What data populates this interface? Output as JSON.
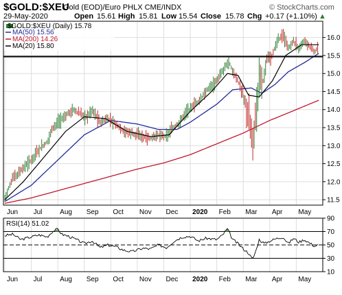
{
  "header": {
    "symbol": "$GOLD:$XEU",
    "description": "Gold (EOD)/Euro PHLX  CME/INDX",
    "watermark": "© StockCharts.com",
    "date": "29-May-2020",
    "open_label": "Open",
    "open": "15.61",
    "high_label": "High",
    "high": "15.81",
    "low_label": "Low",
    "low": "15.54",
    "close_label": "Close",
    "close": "15.78",
    "chg_label": "Chg",
    "chg": "+0.17 (+1.10%)",
    "chg_arrow": "▲"
  },
  "legend": {
    "price": "$GOLD:$XEU (Daily) 15.78",
    "ma50": "MA(50) 15.56",
    "ma200": "MA(200) 14.26",
    "ma20": "MA(20) 15.80"
  },
  "colors": {
    "up": "#2e7d32",
    "down": "#c62828",
    "ma50": "#1f2a9b",
    "ma200": "#c0162e",
    "ma20": "#000000",
    "rsi_fill": "#6aa96a",
    "grid": "#dddddd"
  },
  "chart_data": [
    {
      "type": "candlestick",
      "title": "$GOLD:$XEU (Daily)",
      "ylim": [
        11.35,
        16.45
      ],
      "yticks": [
        "11.5",
        "12.0",
        "12.5",
        "13.0",
        "13.5",
        "14.0",
        "14.5",
        "15.0",
        "15.5",
        "16.0"
      ],
      "xticks": [
        "Jun",
        "Jul",
        "Aug",
        "Sep",
        "Oct",
        "Nov",
        "Dec",
        "2020",
        "Feb",
        "Mar",
        "Apr",
        "May"
      ],
      "xtick_months": [
        0,
        1,
        2,
        3,
        4,
        5,
        6,
        7,
        8,
        9,
        10,
        11
      ],
      "horizontal_line": 15.47,
      "price_anchors": [
        [
          0,
          11.55
        ],
        [
          0.3,
          12.1
        ],
        [
          0.6,
          12.3
        ],
        [
          1.0,
          12.6
        ],
        [
          1.3,
          12.9
        ],
        [
          1.6,
          13.1
        ],
        [
          1.8,
          13.5
        ],
        [
          2.1,
          13.7
        ],
        [
          2.4,
          13.9
        ],
        [
          2.6,
          14.0
        ],
        [
          2.9,
          13.85
        ],
        [
          3.1,
          13.8
        ],
        [
          3.3,
          14.0
        ],
        [
          3.6,
          13.65
        ],
        [
          3.9,
          13.75
        ],
        [
          4.2,
          13.6
        ],
        [
          4.5,
          13.4
        ],
        [
          4.8,
          13.35
        ],
        [
          5.2,
          13.25
        ],
        [
          5.5,
          13.2
        ],
        [
          5.8,
          13.3
        ],
        [
          6.1,
          13.25
        ],
        [
          6.3,
          13.45
        ],
        [
          6.6,
          13.65
        ],
        [
          6.8,
          13.9
        ],
        [
          7.1,
          14.1
        ],
        [
          7.4,
          14.3
        ],
        [
          7.7,
          14.6
        ],
        [
          8.0,
          14.8
        ],
        [
          8.25,
          15.1
        ],
        [
          8.45,
          15.35
        ],
        [
          8.6,
          15.05
        ],
        [
          8.8,
          14.8
        ],
        [
          9.0,
          14.4
        ],
        [
          9.2,
          13.8
        ],
        [
          9.35,
          13.1
        ],
        [
          9.5,
          13.95
        ],
        [
          9.6,
          15.0
        ],
        [
          9.75,
          14.8
        ],
        [
          9.9,
          15.4
        ],
        [
          10.1,
          15.5
        ],
        [
          10.3,
          15.95
        ],
        [
          10.5,
          16.05
        ],
        [
          10.7,
          15.7
        ],
        [
          10.9,
          15.9
        ],
        [
          11.1,
          15.7
        ],
        [
          11.3,
          15.9
        ],
        [
          11.5,
          15.75
        ],
        [
          11.7,
          15.6
        ],
        [
          11.85,
          15.75
        ]
      ],
      "ma50_anchors": [
        [
          0,
          11.45
        ],
        [
          1.0,
          11.9
        ],
        [
          2.0,
          12.6
        ],
        [
          3.0,
          13.3
        ],
        [
          4.0,
          13.7
        ],
        [
          5.0,
          13.6
        ],
        [
          5.8,
          13.45
        ],
        [
          6.5,
          13.45
        ],
        [
          7.0,
          13.65
        ],
        [
          8.0,
          14.15
        ],
        [
          8.6,
          14.55
        ],
        [
          9.3,
          14.6
        ],
        [
          9.7,
          14.45
        ],
        [
          10.2,
          14.7
        ],
        [
          10.7,
          15.05
        ],
        [
          11.3,
          15.3
        ],
        [
          11.85,
          15.56
        ]
      ],
      "ma200_anchors": [
        [
          0,
          11.4
        ],
        [
          1.0,
          11.55
        ],
        [
          2.0,
          11.75
        ],
        [
          3.0,
          11.95
        ],
        [
          4.0,
          12.15
        ],
        [
          5.0,
          12.35
        ],
        [
          6.0,
          12.52
        ],
        [
          7.0,
          12.75
        ],
        [
          8.0,
          13.05
        ],
        [
          9.0,
          13.35
        ],
        [
          10.0,
          13.7
        ],
        [
          11.0,
          14.0
        ],
        [
          11.85,
          14.26
        ]
      ],
      "ma20_anchors": [
        [
          0,
          11.5
        ],
        [
          0.7,
          12.0
        ],
        [
          1.5,
          12.7
        ],
        [
          2.3,
          13.4
        ],
        [
          3.0,
          13.8
        ],
        [
          3.8,
          13.75
        ],
        [
          4.6,
          13.4
        ],
        [
          5.5,
          13.25
        ],
        [
          6.2,
          13.3
        ],
        [
          7.0,
          13.95
        ],
        [
          7.8,
          14.5
        ],
        [
          8.4,
          15.0
        ],
        [
          8.8,
          14.95
        ],
        [
          9.2,
          14.4
        ],
        [
          9.6,
          14.35
        ],
        [
          10.1,
          14.8
        ],
        [
          10.6,
          15.5
        ],
        [
          11.2,
          15.8
        ],
        [
          11.85,
          15.8
        ]
      ],
      "legend_entries": [
        "$GOLD:$XEU (Daily) 15.78",
        "MA(50) 15.56",
        "MA(200) 14.26",
        "MA(20) 15.80"
      ]
    },
    {
      "type": "line",
      "title": "RSI(14) 51.02",
      "ylim": [
        10,
        90
      ],
      "yticks": [
        "90",
        "70",
        "50",
        "30",
        "10"
      ],
      "reference_lines": [
        70,
        50,
        30
      ],
      "xticks": [
        "Jun",
        "Jul",
        "Aug",
        "Sep",
        "Oct",
        "Nov",
        "Dec",
        "2020",
        "Feb",
        "Mar",
        "Apr",
        "May"
      ],
      "rsi_anchors": [
        [
          0,
          64
        ],
        [
          0.3,
          66
        ],
        [
          0.6,
          58
        ],
        [
          1.0,
          62
        ],
        [
          1.3,
          65
        ],
        [
          1.6,
          62
        ],
        [
          1.8,
          70
        ],
        [
          2.0,
          74
        ],
        [
          2.15,
          66
        ],
        [
          2.4,
          63
        ],
        [
          2.7,
          58
        ],
        [
          3.0,
          52
        ],
        [
          3.3,
          56
        ],
        [
          3.6,
          46
        ],
        [
          3.9,
          50
        ],
        [
          4.2,
          47
        ],
        [
          4.5,
          42
        ],
        [
          4.8,
          40
        ],
        [
          5.2,
          45
        ],
        [
          5.5,
          44
        ],
        [
          5.8,
          50
        ],
        [
          6.1,
          46
        ],
        [
          6.4,
          56
        ],
        [
          6.7,
          62
        ],
        [
          7.0,
          63
        ],
        [
          7.3,
          56
        ],
        [
          7.6,
          60
        ],
        [
          8.0,
          58
        ],
        [
          8.2,
          64
        ],
        [
          8.4,
          74
        ],
        [
          8.6,
          58
        ],
        [
          8.8,
          52
        ],
        [
          9.0,
          44
        ],
        [
          9.2,
          38
        ],
        [
          9.35,
          28
        ],
        [
          9.5,
          44
        ],
        [
          9.6,
          58
        ],
        [
          9.8,
          52
        ],
        [
          10.0,
          56
        ],
        [
          10.3,
          60
        ],
        [
          10.5,
          62
        ],
        [
          10.7,
          52
        ],
        [
          10.9,
          60
        ],
        [
          11.1,
          54
        ],
        [
          11.3,
          58
        ],
        [
          11.5,
          53
        ],
        [
          11.7,
          48
        ],
        [
          11.85,
          51
        ]
      ],
      "value": 51.02
    }
  ]
}
